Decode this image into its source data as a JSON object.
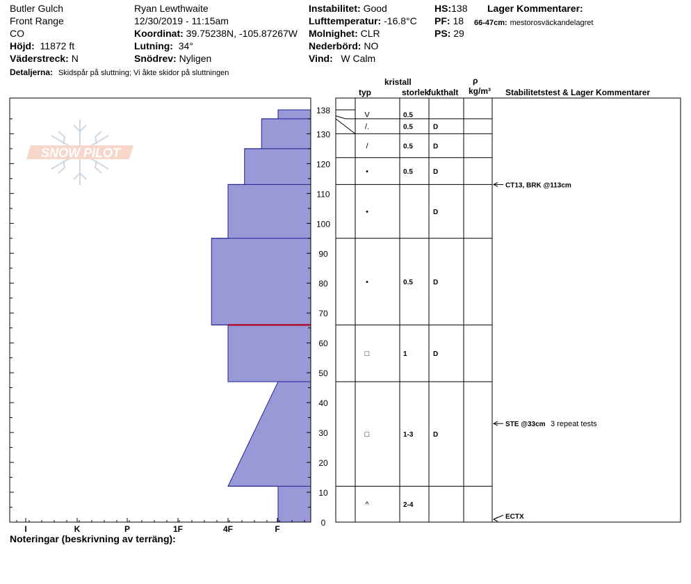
{
  "header": {
    "location": "Butler Gulch",
    "range": "Front Range",
    "state": "CO",
    "elevation_label": "Höjd:",
    "elevation": "11872 ft",
    "aspect_label": "Väderstreck:",
    "aspect": "N",
    "details_label": "Detaljerna:",
    "details": "Skidspår på sluttning;  Vi åkte skidor på sluttningen",
    "observer": "Ryan Lewthwaite",
    "datetime": "12/30/2019 - 11:15am",
    "coord_label": "Koordinat:",
    "coord": "39.75238N, -105.87267W",
    "slope_label": "Lutning:",
    "slope": "34°",
    "snowdrift_label": "Snödrev:",
    "snowdrift": "Nyligen",
    "stability_label": "Instabilitet:",
    "stability": "Good",
    "airtemp_label": "Lufttemperatur:",
    "airtemp": "-16.8°C",
    "sky_label": "Molnighet:",
    "sky": "CLR",
    "precip_label": "Nederbörd:",
    "precip": "NO",
    "wind_label": "Vind:",
    "wind": "W Calm",
    "hs_label": "HS:",
    "hs": "138",
    "pf_label": "PF:",
    "pf": "18",
    "ps_label": "PS:",
    "ps": "29",
    "layer_comments_title": "Lager Kommentarer:",
    "layer_comment_depth": "66-47cm:",
    "layer_comment_text": "mestorosväckandelagret"
  },
  "logo": {
    "text": "SNOW PILOT"
  },
  "columns": {
    "kristall": "kristall",
    "typ": "typ",
    "storlek": "storlek",
    "fukthalt": "fukthalt",
    "rho": "ρ",
    "density_unit": "kg/m³",
    "stability_header": "Stabilitetstest & Lager Kommentarer"
  },
  "footer": {
    "notes_label": "Noteringar (beskrivning av terräng):"
  },
  "colors": {
    "layer_fill": "#9999d8",
    "layer_stroke": "#1f1f8f",
    "weak_layer": "#b01030"
  },
  "chart_data": {
    "type": "snow-profile",
    "y_ticks": [
      0,
      10,
      20,
      30,
      40,
      50,
      60,
      70,
      80,
      90,
      100,
      110,
      120,
      130
    ],
    "y_top_label": "138",
    "ylim": [
      0,
      138
    ],
    "hardness_labels": [
      "I",
      "K",
      "P",
      "1F",
      "4F",
      "F"
    ],
    "hardness_profile": [
      {
        "h": 138,
        "hardness": 1.0
      },
      {
        "h": 135,
        "hardness": 1.0
      },
      {
        "h": 135,
        "hardness": 0.67
      },
      {
        "h": 125,
        "hardness": 0.67
      },
      {
        "h": 125,
        "hardness": 0.33
      },
      {
        "h": 113,
        "hardness": 0.33
      },
      {
        "h": 113,
        "hardness": 0.0
      },
      {
        "h": 95,
        "hardness": 0.0
      },
      {
        "h": 95,
        "hardness": -0.33
      },
      {
        "h": 66,
        "hardness": -0.33
      },
      {
        "h": 66,
        "hardness": 0.0
      },
      {
        "h": 47,
        "hardness": 0.0
      },
      {
        "h": 47,
        "hardness": 1.0
      },
      {
        "h": 12,
        "hardness": 0.0
      },
      {
        "h": 12,
        "hardness": 1.0
      },
      {
        "h": 0,
        "hardness": 1.0
      }
    ],
    "weak_layer_height": 66,
    "layers": [
      {
        "top": 138,
        "bottom": 135,
        "symbol": "V",
        "size": "0.5",
        "moisture": ""
      },
      {
        "top": 135,
        "bottom": 130,
        "symbol": "/.",
        "size": "0.5",
        "moisture": "D"
      },
      {
        "top": 130,
        "bottom": 122,
        "symbol": "/",
        "size": "0.5",
        "moisture": "D"
      },
      {
        "top": 122,
        "bottom": 113,
        "symbol": "•",
        "size": "0.5",
        "moisture": "D"
      },
      {
        "top": 113,
        "bottom": 95,
        "symbol": "•",
        "size": "",
        "moisture": "D"
      },
      {
        "top": 95,
        "bottom": 66,
        "symbol": "•",
        "size": "0.5",
        "moisture": "D"
      },
      {
        "top": 66,
        "bottom": 47,
        "symbol": "□",
        "size": "1",
        "moisture": "D"
      },
      {
        "top": 47,
        "bottom": 12,
        "symbol": "□",
        "size": "1-3",
        "moisture": "D"
      },
      {
        "top": 12,
        "bottom": 0,
        "symbol": "^",
        "size": "2-4",
        "moisture": ""
      }
    ],
    "stability_tests": [
      {
        "height": 113,
        "label": "CT13, BRK @113cm",
        "comment": ""
      },
      {
        "height": 33,
        "label": "STE @33cm",
        "comment": "3 repeat tests"
      },
      {
        "height": 0,
        "label": "ECTX",
        "comment": ""
      }
    ]
  }
}
